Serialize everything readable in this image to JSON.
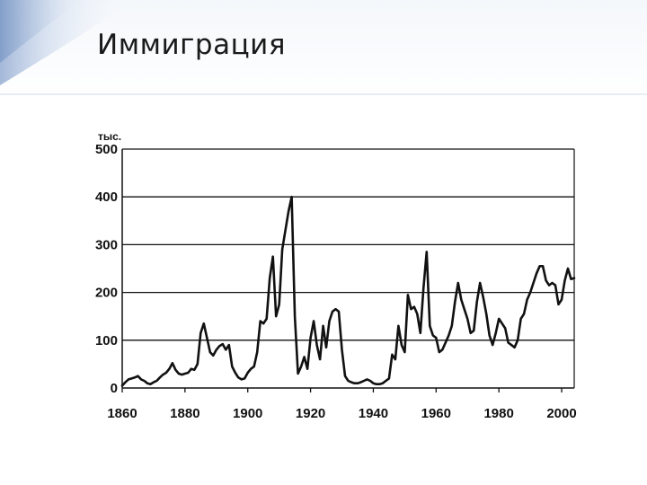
{
  "slide": {
    "title": "Иммиграция"
  },
  "chart_data": {
    "type": "line",
    "title": "",
    "xlabel": "",
    "ylabel": "",
    "unit_label": "тыс.",
    "xlim": [
      1860,
      2004
    ],
    "ylim": [
      0,
      500
    ],
    "x_ticks": [
      1860,
      1880,
      1900,
      1920,
      1940,
      1960,
      1980,
      2000
    ],
    "y_ticks": [
      0,
      100,
      200,
      300,
      400,
      500
    ],
    "grid": "horizontal",
    "series": [
      {
        "color": "#111111",
        "points": [
          [
            1860,
            5
          ],
          [
            1861,
            12
          ],
          [
            1862,
            18
          ],
          [
            1863,
            20
          ],
          [
            1864,
            22
          ],
          [
            1865,
            25
          ],
          [
            1866,
            18
          ],
          [
            1867,
            15
          ],
          [
            1868,
            10
          ],
          [
            1869,
            8
          ],
          [
            1870,
            12
          ],
          [
            1871,
            15
          ],
          [
            1872,
            22
          ],
          [
            1873,
            28
          ],
          [
            1874,
            32
          ],
          [
            1875,
            40
          ],
          [
            1876,
            52
          ],
          [
            1877,
            38
          ],
          [
            1878,
            30
          ],
          [
            1879,
            28
          ],
          [
            1880,
            30
          ],
          [
            1881,
            32
          ],
          [
            1882,
            40
          ],
          [
            1883,
            38
          ],
          [
            1884,
            50
          ],
          [
            1885,
            115
          ],
          [
            1886,
            135
          ],
          [
            1887,
            105
          ],
          [
            1888,
            75
          ],
          [
            1889,
            68
          ],
          [
            1890,
            80
          ],
          [
            1891,
            88
          ],
          [
            1892,
            92
          ],
          [
            1893,
            80
          ],
          [
            1894,
            90
          ],
          [
            1895,
            45
          ],
          [
            1896,
            32
          ],
          [
            1897,
            22
          ],
          [
            1898,
            18
          ],
          [
            1899,
            20
          ],
          [
            1900,
            32
          ],
          [
            1901,
            40
          ],
          [
            1902,
            45
          ],
          [
            1903,
            75
          ],
          [
            1904,
            140
          ],
          [
            1905,
            135
          ],
          [
            1906,
            145
          ],
          [
            1907,
            230
          ],
          [
            1908,
            275
          ],
          [
            1909,
            150
          ],
          [
            1910,
            175
          ],
          [
            1911,
            290
          ],
          [
            1912,
            330
          ],
          [
            1913,
            370
          ],
          [
            1914,
            400
          ],
          [
            1915,
            150
          ],
          [
            1916,
            30
          ],
          [
            1917,
            45
          ],
          [
            1918,
            65
          ],
          [
            1919,
            40
          ],
          [
            1920,
            105
          ],
          [
            1921,
            140
          ],
          [
            1922,
            90
          ],
          [
            1923,
            60
          ],
          [
            1924,
            130
          ],
          [
            1925,
            85
          ],
          [
            1926,
            140
          ],
          [
            1927,
            160
          ],
          [
            1928,
            165
          ],
          [
            1929,
            160
          ],
          [
            1930,
            80
          ],
          [
            1931,
            25
          ],
          [
            1932,
            15
          ],
          [
            1933,
            12
          ],
          [
            1934,
            10
          ],
          [
            1935,
            10
          ],
          [
            1936,
            12
          ],
          [
            1937,
            15
          ],
          [
            1938,
            18
          ],
          [
            1939,
            15
          ],
          [
            1940,
            10
          ],
          [
            1941,
            8
          ],
          [
            1942,
            8
          ],
          [
            1943,
            10
          ],
          [
            1944,
            15
          ],
          [
            1945,
            20
          ],
          [
            1946,
            70
          ],
          [
            1947,
            60
          ],
          [
            1948,
            130
          ],
          [
            1949,
            90
          ],
          [
            1950,
            75
          ],
          [
            1951,
            195
          ],
          [
            1952,
            165
          ],
          [
            1953,
            170
          ],
          [
            1954,
            155
          ],
          [
            1955,
            115
          ],
          [
            1956,
            210
          ],
          [
            1957,
            285
          ],
          [
            1958,
            130
          ],
          [
            1959,
            110
          ],
          [
            1960,
            105
          ],
          [
            1961,
            75
          ],
          [
            1962,
            80
          ],
          [
            1963,
            95
          ],
          [
            1964,
            110
          ],
          [
            1965,
            130
          ],
          [
            1966,
            180
          ],
          [
            1967,
            220
          ],
          [
            1968,
            185
          ],
          [
            1969,
            165
          ],
          [
            1970,
            145
          ],
          [
            1971,
            115
          ],
          [
            1972,
            120
          ],
          [
            1973,
            180
          ],
          [
            1974,
            220
          ],
          [
            1975,
            190
          ],
          [
            1976,
            155
          ],
          [
            1977,
            110
          ],
          [
            1978,
            90
          ],
          [
            1979,
            115
          ],
          [
            1980,
            145
          ],
          [
            1981,
            135
          ],
          [
            1982,
            125
          ],
          [
            1983,
            95
          ],
          [
            1984,
            90
          ],
          [
            1985,
            85
          ],
          [
            1986,
            100
          ],
          [
            1987,
            145
          ],
          [
            1988,
            155
          ],
          [
            1989,
            185
          ],
          [
            1990,
            200
          ],
          [
            1991,
            220
          ],
          [
            1992,
            240
          ],
          [
            1993,
            255
          ],
          [
            1994,
            255
          ],
          [
            1995,
            225
          ],
          [
            1996,
            215
          ],
          [
            1997,
            220
          ],
          [
            1998,
            215
          ],
          [
            1999,
            175
          ],
          [
            2000,
            185
          ],
          [
            2001,
            225
          ],
          [
            2002,
            250
          ],
          [
            2003,
            228
          ],
          [
            2004,
            230
          ]
        ]
      }
    ]
  }
}
